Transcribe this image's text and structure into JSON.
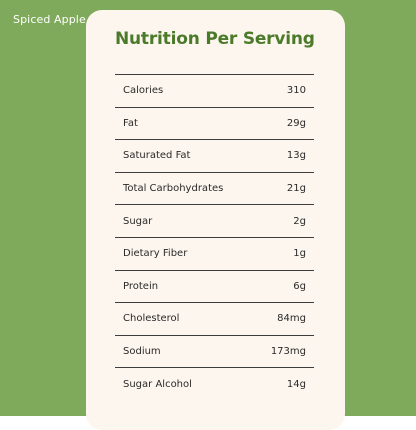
{
  "colors": {
    "background": "#7faa5b",
    "card": "#fdf6ee",
    "title": "#4b7a2a",
    "text": "#2a2a2a",
    "brand": "#ffffff"
  },
  "brand": {
    "name": "Spiced Apple"
  },
  "card": {
    "title": "Nutrition Per Serving",
    "rows": [
      {
        "label": "Calories",
        "value": "310"
      },
      {
        "label": "Fat",
        "value": "29g"
      },
      {
        "label": "Saturated Fat",
        "value": "13g"
      },
      {
        "label": "Total Carbohydrates",
        "value": "21g"
      },
      {
        "label": "Sugar",
        "value": "2g"
      },
      {
        "label": "Dietary Fiber",
        "value": "1g"
      },
      {
        "label": "Protein",
        "value": "6g"
      },
      {
        "label": "Cholesterol",
        "value": "84mg"
      },
      {
        "label": "Sodium",
        "value": "173mg"
      },
      {
        "label": "Sugar Alcohol",
        "value": "14g"
      }
    ]
  }
}
